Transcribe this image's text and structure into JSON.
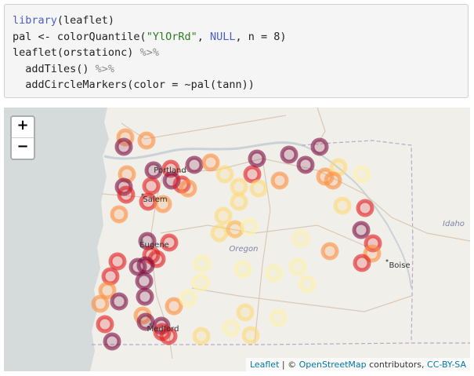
{
  "code": {
    "lines": [
      [
        {
          "text": "library",
          "color": "#4b5fc4"
        },
        {
          "text": "(leaflet)",
          "color": "#222222"
        }
      ],
      [
        {
          "text": "pal <- colorQuantile(",
          "color": "#222222"
        },
        {
          "text": "\"YlOrRd\"",
          "color": "#2e7d1f"
        },
        {
          "text": ", ",
          "color": "#222222"
        },
        {
          "text": "NULL",
          "color": "#4b5fc4"
        },
        {
          "text": ", n = ",
          "color": "#222222"
        },
        {
          "text": "8",
          "color": "#222222"
        },
        {
          "text": ")",
          "color": "#222222"
        }
      ],
      [
        {
          "text": "leaflet(orstationc) ",
          "color": "#222222"
        },
        {
          "text": "%>%",
          "color": "#8a8a8a"
        }
      ],
      [
        {
          "text": "  addTiles() ",
          "color": "#222222"
        },
        {
          "text": "%>%",
          "color": "#8a8a8a"
        }
      ],
      [
        {
          "text": "  addCircleMarkers(color = ~pal(tann))",
          "color": "#222222"
        }
      ]
    ]
  },
  "map": {
    "zoom": [
      "+",
      "−"
    ],
    "cities": [
      "Portland",
      "Salem",
      "Eugene",
      "Medford",
      "Boise"
    ],
    "regions": [
      "Oregon",
      "Idaho"
    ],
    "attribution": [
      {
        "text": "Leaflet",
        "color": "#0078a8"
      },
      {
        "text": " | © ",
        "color": "#333333"
      },
      {
        "text": "OpenStreetMap",
        "color": "#0078a8"
      },
      {
        "text": " contributors, ",
        "color": "#333333"
      },
      {
        "text": "CC-BY-SA",
        "color": "#0078a8"
      }
    ]
  }
}
